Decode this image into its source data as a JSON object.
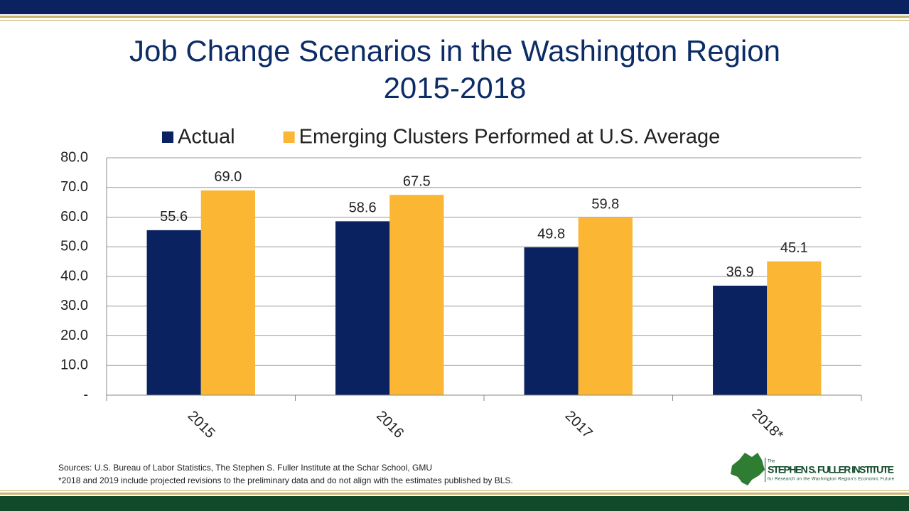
{
  "chart_data": {
    "type": "bar",
    "title": "Job Change Scenarios in the Washington Region",
    "subtitle": "2015-2018",
    "categories": [
      "2015",
      "2016",
      "2017",
      "2018*"
    ],
    "series": [
      {
        "name": "Actual",
        "color": "#0b2260",
        "values": [
          55.6,
          58.6,
          49.8,
          36.9
        ],
        "value_labels": [
          "55.6",
          "58.6",
          "49.8",
          "36.9"
        ]
      },
      {
        "name": "Emerging Clusters Performed at U.S. Average",
        "color": "#fbb634",
        "values": [
          69.0,
          67.5,
          59.8,
          45.1
        ],
        "value_labels": [
          "69.0",
          "67.5",
          "59.8",
          "45.1"
        ]
      }
    ],
    "ylim": [
      0,
      80
    ],
    "yticks": [
      {
        "value": 0,
        "label": "-"
      },
      {
        "value": 10,
        "label": "10.0"
      },
      {
        "value": 20,
        "label": "20.0"
      },
      {
        "value": 30,
        "label": "30.0"
      },
      {
        "value": 40,
        "label": "40.0"
      },
      {
        "value": 50,
        "label": "50.0"
      },
      {
        "value": 60,
        "label": "60.0"
      },
      {
        "value": 70,
        "label": "70.0"
      },
      {
        "value": 80,
        "label": "80.0"
      }
    ],
    "grid": true,
    "legend": "top"
  },
  "sources": "Sources: U.S. Bureau of Labor Statistics, The Stephen S. Fuller Institute at the Schar School, GMU",
  "note": "*2018 and 2019 include projected revisions to the preliminary data and do not align with the estimates published by BLS.",
  "logo": {
    "small": "The",
    "name": "STEPHEN S. FULLER INSTITUTE",
    "tagline": "for Research on the Washington Region's Economic Future"
  }
}
